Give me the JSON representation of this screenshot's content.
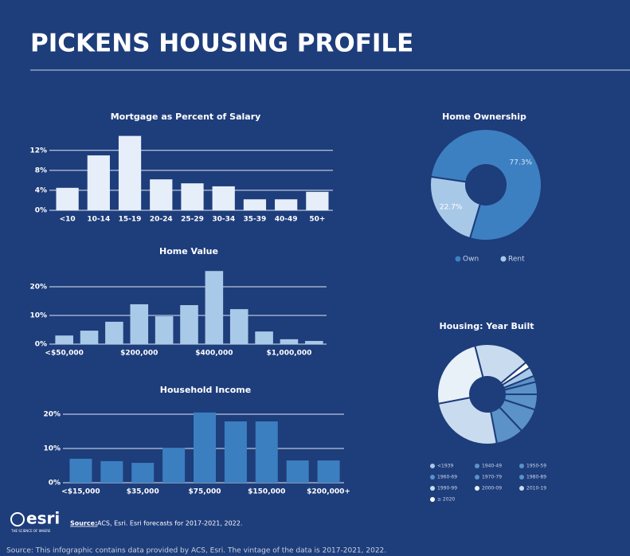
{
  "title": "PICKENS HOUSING PROFILE",
  "logo": "esri",
  "logo_tagline": "THE SCIENCE OF WHERE",
  "source_label": "Source:",
  "source": "ACS, Esri. Esri forecasts for 2017-2021, 2022.",
  "footer": "Source: This infographic contains data provided by ACS, Esri. The vintage of the data is 2017-2021, 2022.",
  "chart_data": [
    {
      "type": "bar",
      "title": "Mortgage as Percent of Salary",
      "categories": [
        "<10",
        "10-14",
        "15-19",
        "20-24",
        "25-29",
        "30-34",
        "35-39",
        "40-49",
        "50+"
      ],
      "values": [
        4.5,
        11,
        14.9,
        6.2,
        5.4,
        4.8,
        2.2,
        2.2,
        3.7
      ],
      "color": "#e6eef9",
      "ylim": [
        0,
        15
      ],
      "yticks": [
        {
          "value": 0,
          "label": "0%"
        },
        {
          "value": 4,
          "label": "4%"
        },
        {
          "value": 8,
          "label": "8%"
        },
        {
          "value": 12,
          "label": "12%"
        }
      ],
      "grid": true
    },
    {
      "type": "bar",
      "title": "Home Value",
      "categories": [
        "<$50,000",
        null,
        null,
        "$200,000",
        null,
        null,
        "$400,000",
        null,
        null,
        "$1,000,000",
        null
      ],
      "values": [
        3,
        4.7,
        7.8,
        13.9,
        9.7,
        13.6,
        25.5,
        12.2,
        4.4,
        1.7,
        1.1
      ],
      "color": "#a9c9e8",
      "ylim": [
        0,
        27
      ],
      "yticks": [
        {
          "value": 0,
          "label": "0%"
        },
        {
          "value": 10,
          "label": "10%"
        },
        {
          "value": 20,
          "label": "20%"
        }
      ],
      "grid": true
    },
    {
      "type": "bar",
      "title": "Household Income",
      "categories": [
        "<$15,000",
        null,
        "$35,000",
        null,
        "$75,000",
        null,
        "$150,000",
        null,
        "$200,000+"
      ],
      "values": [
        7,
        6.3,
        5.8,
        10.2,
        20.5,
        17.9,
        17.9,
        6.5,
        6.5
      ],
      "color": "#3b7fc0",
      "ylim": [
        0,
        22
      ],
      "yticks": [
        {
          "value": 0,
          "label": "0%"
        },
        {
          "value": 10,
          "label": "10%"
        },
        {
          "value": 20,
          "label": "20%"
        }
      ],
      "grid": true
    },
    {
      "type": "donut",
      "title": "Home Ownership",
      "categories": [
        "Own",
        "Rent"
      ],
      "values": [
        77.3,
        22.7
      ],
      "value_labels": [
        "77.3%",
        "22.7%"
      ],
      "colors": [
        "#3d80c2",
        "#a8c8e8"
      ],
      "legend": "bottom"
    },
    {
      "type": "donut",
      "title": "Housing: Year Built",
      "categories": [
        "<1939",
        "1940-49",
        "1950-59",
        "1960-69",
        "1970-79",
        "1980-89",
        "1990-99",
        "2000-09",
        "2010-19",
        "≥ 2020"
      ],
      "values": [
        3,
        2,
        4,
        5,
        8,
        9,
        25,
        24,
        18,
        2
      ],
      "colors": [
        "#a8c8e8",
        "#5b92c8",
        "#5b92c8",
        "#5b92c8",
        "#5b92c8",
        "#5b92c8",
        "#c9dcef",
        "#e8f0f8",
        "#c9dcef",
        "#ffffff"
      ],
      "legend": "bottom"
    }
  ]
}
